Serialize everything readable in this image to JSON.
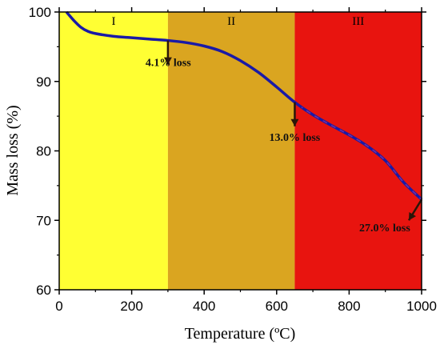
{
  "chart_data": {
    "type": "line",
    "xlabel": "Temperature (ºC)",
    "ylabel": "Mass loss (%)",
    "xlim": [
      0,
      1000
    ],
    "ylim": [
      60,
      100
    ],
    "xticks": [
      0,
      200,
      400,
      600,
      800,
      1000
    ],
    "yticks": [
      60,
      70,
      80,
      90,
      100
    ],
    "grid": false,
    "regions": [
      {
        "label": "I",
        "x_start": 0,
        "x_end": 300,
        "color": "#ffff33"
      },
      {
        "label": "II",
        "x_start": 300,
        "x_end": 650,
        "color": "#daa520"
      },
      {
        "label": "III",
        "x_start": 650,
        "x_end": 1000,
        "color": "#e8140f"
      }
    ],
    "series": [
      {
        "color": "#1a1aa6",
        "x": [
          20,
          40,
          60,
          80,
          100,
          150,
          200,
          250,
          300,
          350,
          400,
          450,
          500,
          550,
          600,
          650,
          700,
          750,
          800,
          850,
          900,
          950,
          1000
        ],
        "y": [
          100,
          98.8,
          97.8,
          97.2,
          96.9,
          96.5,
          96.3,
          96.1,
          95.9,
          95.6,
          95.1,
          94.3,
          93.0,
          91.3,
          89.2,
          87.0,
          85.2,
          83.7,
          82.3,
          80.7,
          78.6,
          75.5,
          73.0
        ]
      }
    ],
    "annotations": [
      {
        "text": "4.1% loss",
        "x": 300,
        "y": 95.9
      },
      {
        "text": "13.0% loss",
        "x": 650,
        "y": 87.0
      },
      {
        "text": "27.0% loss",
        "x": 1000,
        "y": 73.0
      }
    ]
  }
}
